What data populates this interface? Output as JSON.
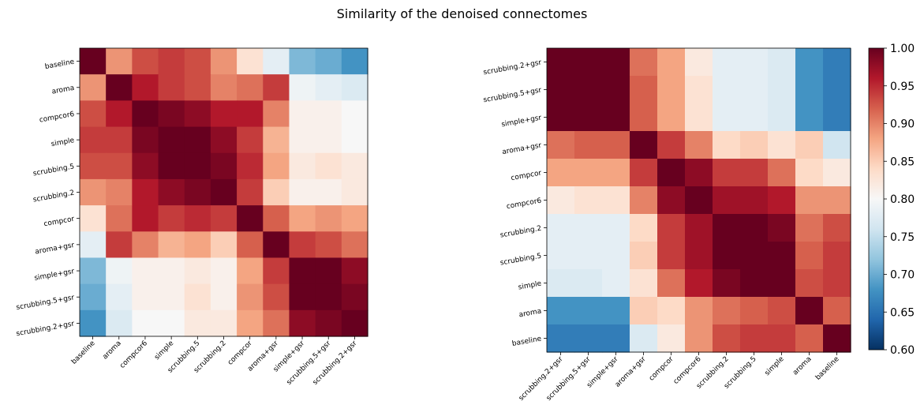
{
  "title": "Similarity of the denoised connectomes",
  "chart_data": [
    {
      "type": "heatmap",
      "title": "",
      "xlabel": "",
      "ylabel": "",
      "labels": [
        "baseline",
        "aroma",
        "compcor6",
        "simple",
        "scrubbing.5",
        "scrubbing.2",
        "compcor",
        "aroma+gsr",
        "simple+gsr",
        "scrubbing.5+gsr",
        "scrubbing.2+gsr"
      ],
      "vmin": 0.6,
      "vmax": 1.0,
      "colormap": "RdBu_r",
      "matrix": [
        [
          1.0,
          0.89,
          0.93,
          0.94,
          0.93,
          0.89,
          0.83,
          0.78,
          0.71,
          0.7,
          0.68
        ],
        [
          0.89,
          1.0,
          0.96,
          0.94,
          0.93,
          0.9,
          0.91,
          0.94,
          0.79,
          0.78,
          0.77
        ],
        [
          0.93,
          0.96,
          1.0,
          0.99,
          0.98,
          0.96,
          0.96,
          0.9,
          0.81,
          0.81,
          0.8
        ],
        [
          0.94,
          0.94,
          0.99,
          1.0,
          1.0,
          0.98,
          0.94,
          0.87,
          0.81,
          0.81,
          0.8
        ],
        [
          0.93,
          0.93,
          0.98,
          1.0,
          1.0,
          0.99,
          0.95,
          0.88,
          0.82,
          0.83,
          0.82
        ],
        [
          0.89,
          0.9,
          0.96,
          0.98,
          0.99,
          1.0,
          0.94,
          0.85,
          0.81,
          0.81,
          0.82
        ],
        [
          0.83,
          0.91,
          0.96,
          0.94,
          0.95,
          0.94,
          1.0,
          0.92,
          0.88,
          0.89,
          0.88
        ],
        [
          0.78,
          0.94,
          0.9,
          0.87,
          0.88,
          0.85,
          0.92,
          1.0,
          0.94,
          0.93,
          0.91
        ],
        [
          0.71,
          0.79,
          0.81,
          0.81,
          0.82,
          0.81,
          0.88,
          0.94,
          1.0,
          1.0,
          0.98
        ],
        [
          0.7,
          0.78,
          0.81,
          0.81,
          0.83,
          0.81,
          0.89,
          0.93,
          1.0,
          1.0,
          0.99
        ],
        [
          0.68,
          0.77,
          0.8,
          0.8,
          0.82,
          0.82,
          0.88,
          0.91,
          0.98,
          0.99,
          1.0
        ]
      ]
    },
    {
      "type": "heatmap",
      "title": "",
      "xlabel": "",
      "ylabel": "",
      "labels": [
        "scrubbing.2+gsr",
        "scrubbing.5+gsr",
        "simple+gsr",
        "aroma+gsr",
        "compcor",
        "compcor6",
        "scrubbing.2",
        "scrubbing.5",
        "simple",
        "aroma",
        "baseline"
      ],
      "vmin": 0.6,
      "vmax": 1.0,
      "colormap": "RdBu_r",
      "matrix": [
        [
          1.0,
          1.0,
          1.0,
          0.91,
          0.88,
          0.82,
          0.78,
          0.78,
          0.77,
          0.68,
          0.66
        ],
        [
          1.0,
          1.0,
          1.0,
          0.92,
          0.88,
          0.83,
          0.78,
          0.78,
          0.77,
          0.68,
          0.66
        ],
        [
          1.0,
          1.0,
          1.0,
          0.92,
          0.88,
          0.83,
          0.78,
          0.78,
          0.77,
          0.68,
          0.66
        ],
        [
          0.91,
          0.92,
          0.92,
          1.0,
          0.94,
          0.9,
          0.84,
          0.85,
          0.83,
          0.85,
          0.76
        ],
        [
          0.88,
          0.88,
          0.88,
          0.94,
          1.0,
          0.98,
          0.94,
          0.94,
          0.91,
          0.84,
          0.82
        ],
        [
          0.82,
          0.83,
          0.83,
          0.9,
          0.98,
          1.0,
          0.97,
          0.97,
          0.96,
          0.89,
          0.89
        ],
        [
          0.78,
          0.78,
          0.78,
          0.84,
          0.94,
          0.97,
          1.0,
          1.0,
          0.99,
          0.91,
          0.93
        ],
        [
          0.78,
          0.78,
          0.78,
          0.85,
          0.94,
          0.97,
          1.0,
          1.0,
          1.0,
          0.92,
          0.94
        ],
        [
          0.77,
          0.77,
          0.78,
          0.83,
          0.91,
          0.96,
          0.99,
          1.0,
          1.0,
          0.93,
          0.94
        ],
        [
          0.68,
          0.68,
          0.68,
          0.85,
          0.84,
          0.89,
          0.91,
          0.92,
          0.93,
          1.0,
          0.92
        ],
        [
          0.66,
          0.66,
          0.66,
          0.77,
          0.82,
          0.89,
          0.93,
          0.94,
          0.94,
          0.92,
          1.0
        ]
      ]
    }
  ],
  "colorbar": {
    "ticks": [
      "0.60",
      "0.65",
      "0.70",
      "0.75",
      "0.80",
      "0.85",
      "0.90",
      "0.95",
      "1.00"
    ],
    "tick_values": [
      0.6,
      0.65,
      0.7,
      0.75,
      0.8,
      0.85,
      0.9,
      0.95,
      1.0
    ]
  }
}
